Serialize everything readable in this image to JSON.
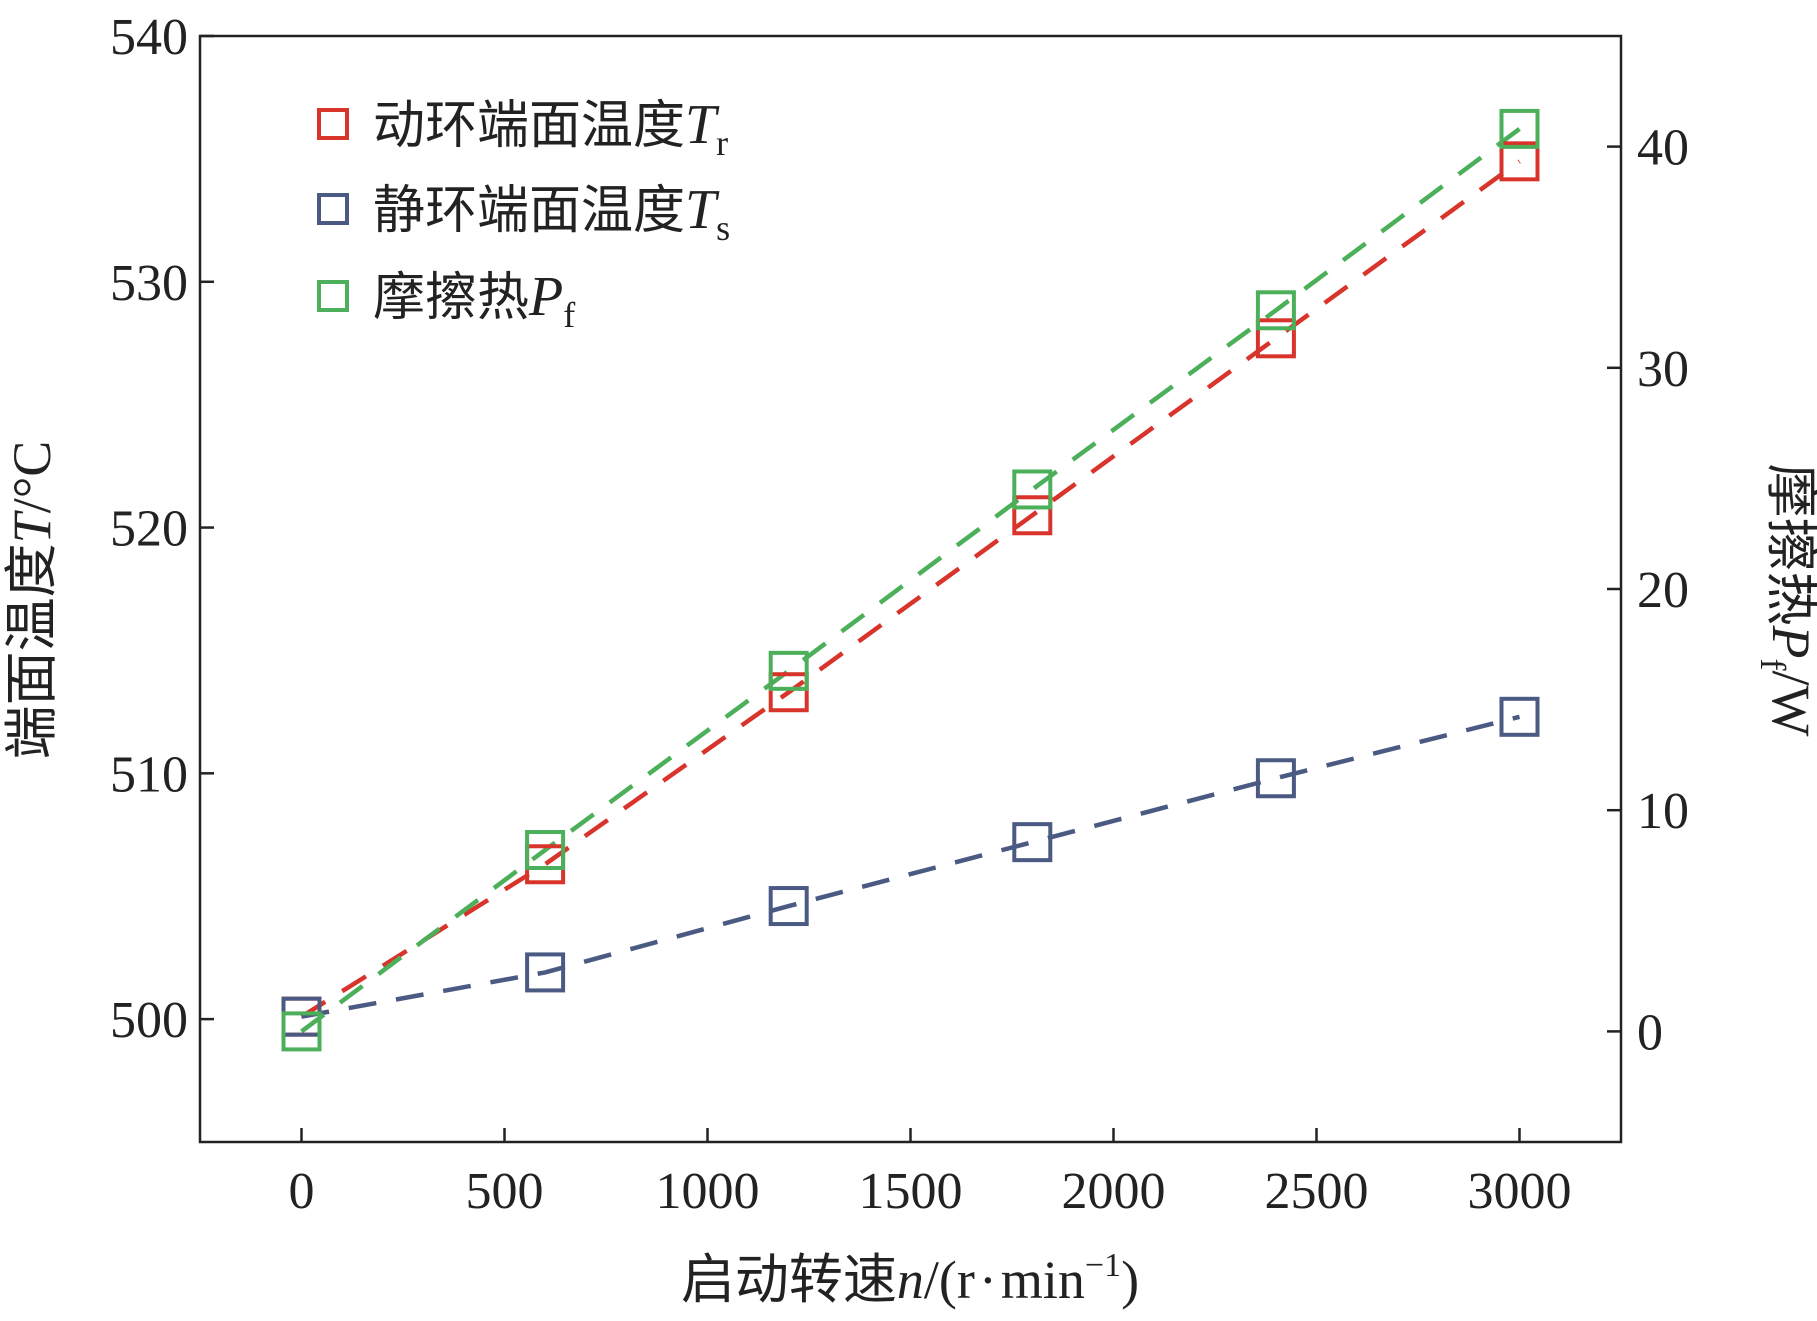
{
  "chart_data": {
    "type": "line",
    "x": [
      0,
      600,
      1200,
      1800,
      2400,
      3000
    ],
    "xlim": [
      -250,
      3250
    ],
    "ylim": [
      495,
      540
    ],
    "y2lim": [
      -5,
      45
    ],
    "xticks": [
      0,
      500,
      1000,
      1500,
      2000,
      2500,
      3000
    ],
    "yticks": [
      500,
      510,
      520,
      530,
      540
    ],
    "y2ticks": [
      0,
      10,
      20,
      30,
      40
    ],
    "xlabel": {
      "main": "启动转速",
      "var": "n",
      "unit_open": "/(r",
      "dot": "·",
      "unit_mid": "min",
      "exp": "−1",
      "unit_close": ")"
    },
    "ylabel": {
      "main": "端面温度",
      "var": "T",
      "unit": "/°C"
    },
    "y2label": {
      "main": "摩擦热",
      "var": "P",
      "sub": "f",
      "unit": "/W"
    },
    "legend_position": "top-left",
    "series": [
      {
        "name": "动环端面温度",
        "symbol": "T",
        "sub": "r",
        "axis": "left",
        "color": "#d9342b",
        "values": [
          500.1,
          506.3,
          513.3,
          520.5,
          527.7,
          534.9
        ]
      },
      {
        "name": "静环端面温度",
        "symbol": "T",
        "sub": "s",
        "axis": "left",
        "color": "#4a5a82",
        "values": [
          500.1,
          501.9,
          504.6,
          507.2,
          509.8,
          512.3
        ]
      },
      {
        "name": "摩擦热",
        "symbol": "P",
        "sub": "f",
        "axis": "right",
        "color": "#4caf5a",
        "values": [
          0.0,
          8.2,
          16.3,
          24.5,
          32.6,
          40.8
        ]
      }
    ]
  }
}
